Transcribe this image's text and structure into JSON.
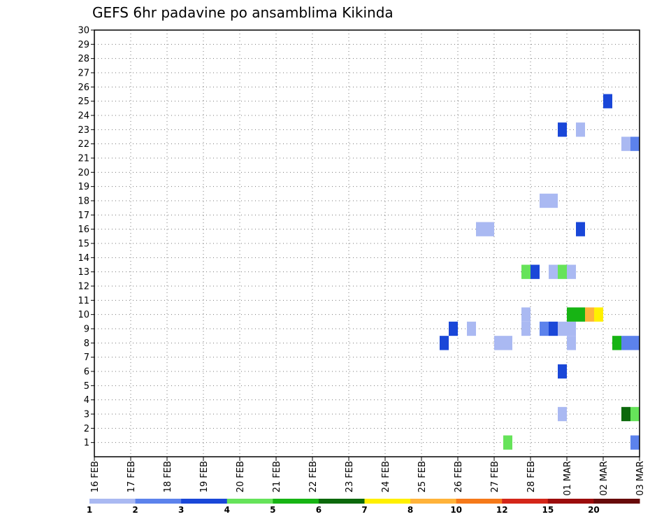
{
  "chart_data": {
    "type": "heatmap",
    "title": "GEFS 6hr padavine po ansamblima Kikinda",
    "y_ticks": [
      1,
      2,
      3,
      4,
      5,
      6,
      7,
      8,
      9,
      10,
      11,
      12,
      13,
      14,
      15,
      16,
      17,
      18,
      19,
      20,
      21,
      22,
      23,
      24,
      25,
      26,
      27,
      28,
      29,
      30
    ],
    "ylim": [
      0,
      30
    ],
    "x_ticks": [
      {
        "day": 0,
        "label": "16 FEB"
      },
      {
        "day": 1,
        "label": "17 FEB"
      },
      {
        "day": 2,
        "label": "18 FEB"
      },
      {
        "day": 3,
        "label": "19 FEB"
      },
      {
        "day": 4,
        "label": "20 FEB"
      },
      {
        "day": 5,
        "label": "21 FEB"
      },
      {
        "day": 6,
        "label": "22 FEB"
      },
      {
        "day": 7,
        "label": "23 FEB"
      },
      {
        "day": 8,
        "label": "24 FEB"
      },
      {
        "day": 9,
        "label": "25 FEB"
      },
      {
        "day": 10,
        "label": "26 FEB"
      },
      {
        "day": 11,
        "label": "27 FEB"
      },
      {
        "day": 12,
        "label": "28 FEB"
      },
      {
        "day": 13,
        "label": "01 MAR"
      },
      {
        "day": 14,
        "label": "02 MAR"
      },
      {
        "day": 15,
        "label": "03 MAR"
      }
    ],
    "xlim": [
      0,
      15
    ],
    "grid": true,
    "colorbar": {
      "colors": [
        "#aab9f2",
        "#5c82ec",
        "#1a47d8",
        "#66e35a",
        "#17b414",
        "#0c690c",
        "#fff000",
        "#ffb33a",
        "#f5791a",
        "#d42619",
        "#9c0c0c",
        "#680a0a"
      ],
      "labels": [
        {
          "index": 0,
          "label": "1"
        },
        {
          "index": 1,
          "label": "2"
        },
        {
          "index": 2,
          "label": "3"
        },
        {
          "index": 3,
          "label": "4"
        },
        {
          "index": 4,
          "label": "5"
        },
        {
          "index": 5,
          "label": "6"
        },
        {
          "index": 6,
          "label": "7"
        },
        {
          "index": 7,
          "label": "8"
        },
        {
          "index": 8,
          "label": "10"
        },
        {
          "index": 9,
          "label": "12"
        },
        {
          "index": 10,
          "label": "15"
        },
        {
          "index": 11,
          "label": "20"
        }
      ]
    },
    "cells": [
      {
        "member": 1,
        "day_start": 11.25,
        "day_end": 11.5,
        "level": 3
      },
      {
        "member": 1,
        "day_start": 14.75,
        "day_end": 15.0,
        "level": 1
      },
      {
        "member": 3,
        "day_start": 12.75,
        "day_end": 13.0,
        "level": 0
      },
      {
        "member": 3,
        "day_start": 14.5,
        "day_end": 14.75,
        "level": 5
      },
      {
        "member": 3,
        "day_start": 14.75,
        "day_end": 15.0,
        "level": 3
      },
      {
        "member": 6,
        "day_start": 12.75,
        "day_end": 13.0,
        "level": 2
      },
      {
        "member": 8,
        "day_start": 9.5,
        "day_end": 9.75,
        "level": 2
      },
      {
        "member": 8,
        "day_start": 11.0,
        "day_end": 11.5,
        "level": 0
      },
      {
        "member": 8,
        "day_start": 13.0,
        "day_end": 13.25,
        "level": 0
      },
      {
        "member": 8,
        "day_start": 14.25,
        "day_end": 14.5,
        "level": 4
      },
      {
        "member": 8,
        "day_start": 14.5,
        "day_end": 15.0,
        "level": 1
      },
      {
        "member": 9,
        "day_start": 9.75,
        "day_end": 10.0,
        "level": 2
      },
      {
        "member": 9,
        "day_start": 10.25,
        "day_end": 10.5,
        "level": 0
      },
      {
        "member": 9,
        "day_start": 11.75,
        "day_end": 12.0,
        "level": 0
      },
      {
        "member": 9,
        "day_start": 12.25,
        "day_end": 12.5,
        "level": 1
      },
      {
        "member": 9,
        "day_start": 12.5,
        "day_end": 12.75,
        "level": 2
      },
      {
        "member": 9,
        "day_start": 12.75,
        "day_end": 13.25,
        "level": 0
      },
      {
        "member": 10,
        "day_start": 11.75,
        "day_end": 12.0,
        "level": 0
      },
      {
        "member": 10,
        "day_start": 13.0,
        "day_end": 13.5,
        "level": 4
      },
      {
        "member": 10,
        "day_start": 13.5,
        "day_end": 13.75,
        "level": 7
      },
      {
        "member": 10,
        "day_start": 13.75,
        "day_end": 14.0,
        "level": 6
      },
      {
        "member": 13,
        "day_start": 11.75,
        "day_end": 12.0,
        "level": 3
      },
      {
        "member": 13,
        "day_start": 12.0,
        "day_end": 12.25,
        "level": 2
      },
      {
        "member": 13,
        "day_start": 12.5,
        "day_end": 12.75,
        "level": 0
      },
      {
        "member": 13,
        "day_start": 12.75,
        "day_end": 13.0,
        "level": 3
      },
      {
        "member": 13,
        "day_start": 13.0,
        "day_end": 13.25,
        "level": 0
      },
      {
        "member": 16,
        "day_start": 10.5,
        "day_end": 11.0,
        "level": 0
      },
      {
        "member": 16,
        "day_start": 13.25,
        "day_end": 13.5,
        "level": 2
      },
      {
        "member": 18,
        "day_start": 12.25,
        "day_end": 12.75,
        "level": 0
      },
      {
        "member": 22,
        "day_start": 14.5,
        "day_end": 14.75,
        "level": 0
      },
      {
        "member": 22,
        "day_start": 14.75,
        "day_end": 15.0,
        "level": 1
      },
      {
        "member": 23,
        "day_start": 12.75,
        "day_end": 13.0,
        "level": 2
      },
      {
        "member": 23,
        "day_start": 13.25,
        "day_end": 13.5,
        "level": 0
      },
      {
        "member": 25,
        "day_start": 14.0,
        "day_end": 14.25,
        "level": 2
      }
    ]
  }
}
